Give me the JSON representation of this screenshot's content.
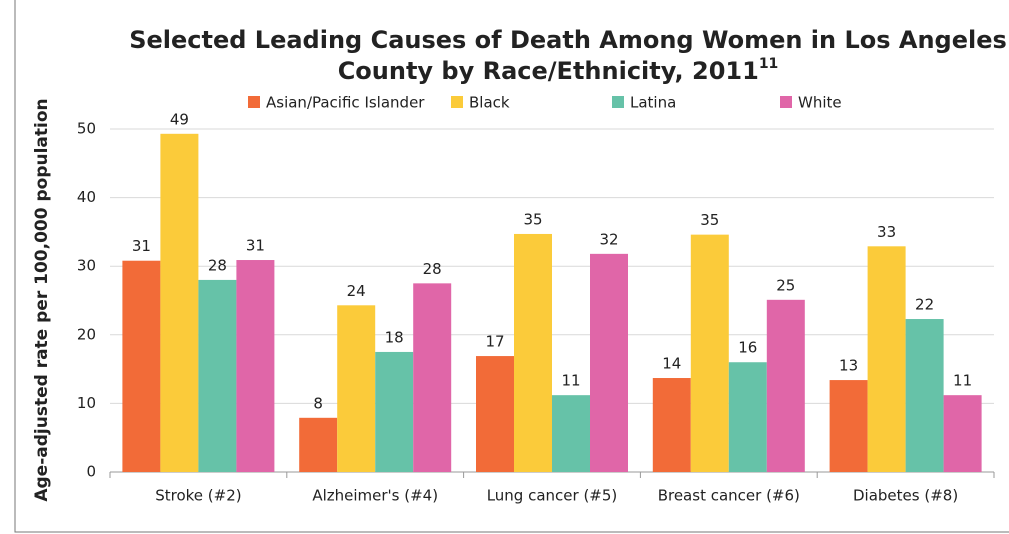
{
  "chart_data": {
    "type": "bar",
    "title": [
      "Selected Leading Causes of Death Among Women in Los Angeles",
      "County by Race/Ethnicity, 2011"
    ],
    "title_superscript": "11",
    "y_label": "Age-adjusted rate per 100,000 population",
    "categories": [
      "Stroke (#2)",
      "Alzheimer's (#4)",
      "Lung cancer (#5)",
      "Breast cancer (#6)",
      "Diabetes (#8)"
    ],
    "series": [
      {
        "name": "Asian/Pacific Islander",
        "color": "#f26b38",
        "values": [
          30.8,
          7.9,
          16.9,
          13.7,
          13.4
        ],
        "value_labels": [
          "31",
          "8",
          "17",
          "14",
          "13"
        ]
      },
      {
        "name": "Black",
        "color": "#fbcb3a",
        "values": [
          49.3,
          24.3,
          34.7,
          34.6,
          32.9
        ],
        "value_labels": [
          "49",
          "24",
          "35",
          "35",
          "33"
        ]
      },
      {
        "name": "Latina",
        "color": "#66c2a8",
        "values": [
          28.0,
          17.5,
          11.2,
          16.0,
          22.3
        ],
        "value_labels": [
          "28",
          "18",
          "11",
          "16",
          "22"
        ]
      },
      {
        "name": "White",
        "color": "#e066a8",
        "values": [
          30.9,
          27.5,
          31.8,
          25.1,
          11.2
        ],
        "value_labels": [
          "31",
          "28",
          "32",
          "25",
          "11"
        ]
      }
    ],
    "ylim": [
      0,
      50
    ],
    "yticks": [
      0,
      10,
      20,
      30,
      40,
      50
    ],
    "grid": true,
    "legend": "top"
  }
}
